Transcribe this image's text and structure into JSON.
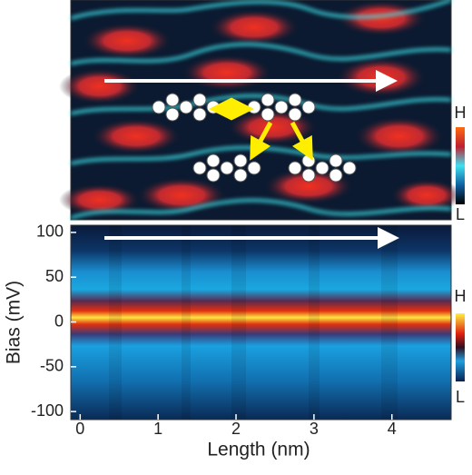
{
  "chart_data": [
    {
      "type": "image",
      "colorbar_labels": [
        "H",
        "L"
      ]
    },
    {
      "type": "heatmap",
      "xlabel": "Length (nm)",
      "ylabel": "Bias (mV)",
      "xlim": [
        -0.12,
        4.76
      ],
      "ylim": [
        -109,
        108
      ],
      "xticks": [
        0,
        1,
        2,
        3,
        4
      ],
      "yticks": [
        -100,
        -50,
        0,
        50,
        100
      ],
      "colorbar_labels": [
        "H",
        "L"
      ]
    }
  ]
}
